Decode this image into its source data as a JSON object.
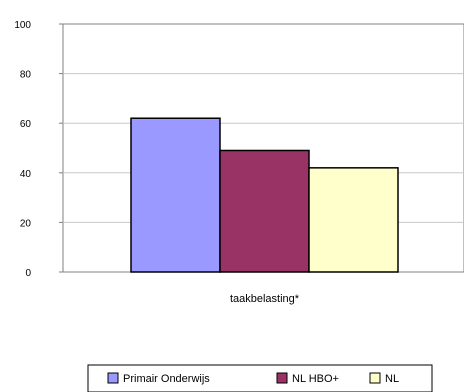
{
  "chart_data": {
    "type": "bar",
    "categories": [
      "taakbelasting*"
    ],
    "series": [
      {
        "name": "Primair Onderwijs",
        "values": [
          62
        ],
        "color": "#9999ff"
      },
      {
        "name": "NL HBO+",
        "values": [
          49
        ],
        "color": "#993366"
      },
      {
        "name": "NL",
        "values": [
          42
        ],
        "color": "#ffffcc"
      }
    ],
    "yticks": [
      "0",
      "20",
      "40",
      "60",
      "80",
      "100"
    ],
    "ylim": [
      0,
      100
    ],
    "grid": true,
    "legend_position": "bottom",
    "xlabel": "",
    "ylabel": "",
    "title": ""
  }
}
